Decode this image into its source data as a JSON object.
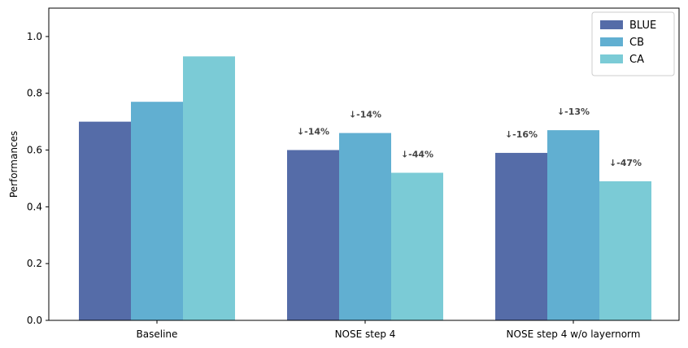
{
  "chart_data": {
    "type": "bar",
    "categories": [
      "Baseline",
      "NOSE step 4",
      "NOSE step 4 w/o layernorm"
    ],
    "series": [
      {
        "name": "BLUE",
        "color": "#556ca8",
        "values": [
          0.7,
          0.6,
          0.59
        ]
      },
      {
        "name": "CB",
        "color": "#61afd1",
        "values": [
          0.77,
          0.66,
          0.67
        ]
      },
      {
        "name": "CA",
        "color": "#7bcbd6",
        "values": [
          0.93,
          0.52,
          0.49
        ]
      }
    ],
    "annotations": [
      [
        null,
        null,
        null
      ],
      [
        "↓-14%",
        "↓-14%",
        "↓-44%"
      ],
      [
        "↓-16%",
        "↓-13%",
        "↓-47%"
      ]
    ],
    "ylabel": "Performances",
    "ylim": [
      0,
      1.1
    ],
    "yticks": [
      0.0,
      0.2,
      0.4,
      0.6,
      0.8,
      1.0
    ],
    "grid": false,
    "legend": "top-right"
  }
}
